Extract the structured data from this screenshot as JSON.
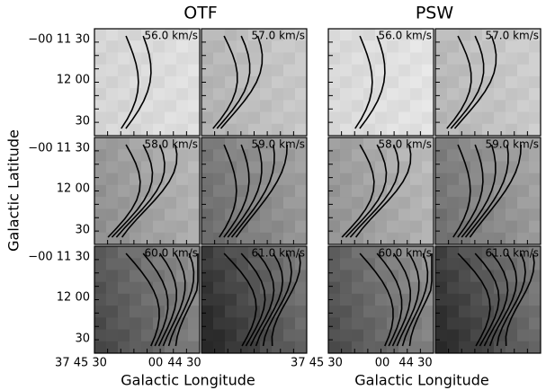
{
  "groups": [
    {
      "title": "OTF",
      "panels": [
        "56.0 km/s",
        "57.0 km/s",
        "58.0 km/s",
        "59.0 km/s",
        "60.0 km/s",
        "61.0 km/s"
      ]
    },
    {
      "title": "PSW",
      "panels": [
        "56.0 km/s",
        "57.0 km/s",
        "58.0 km/s",
        "59.0 km/s",
        "60.0 km/s",
        "61.0 km/s"
      ]
    }
  ],
  "y_tick_labels": [
    "−00 11 30",
    "12 00",
    "30"
  ],
  "x_tick_labels": [
    "37 45 30",
    "00",
    "44 30"
  ],
  "y_axis_title": "Galactic Latitude",
  "x_axis_title": "Galactic Longitude"
}
